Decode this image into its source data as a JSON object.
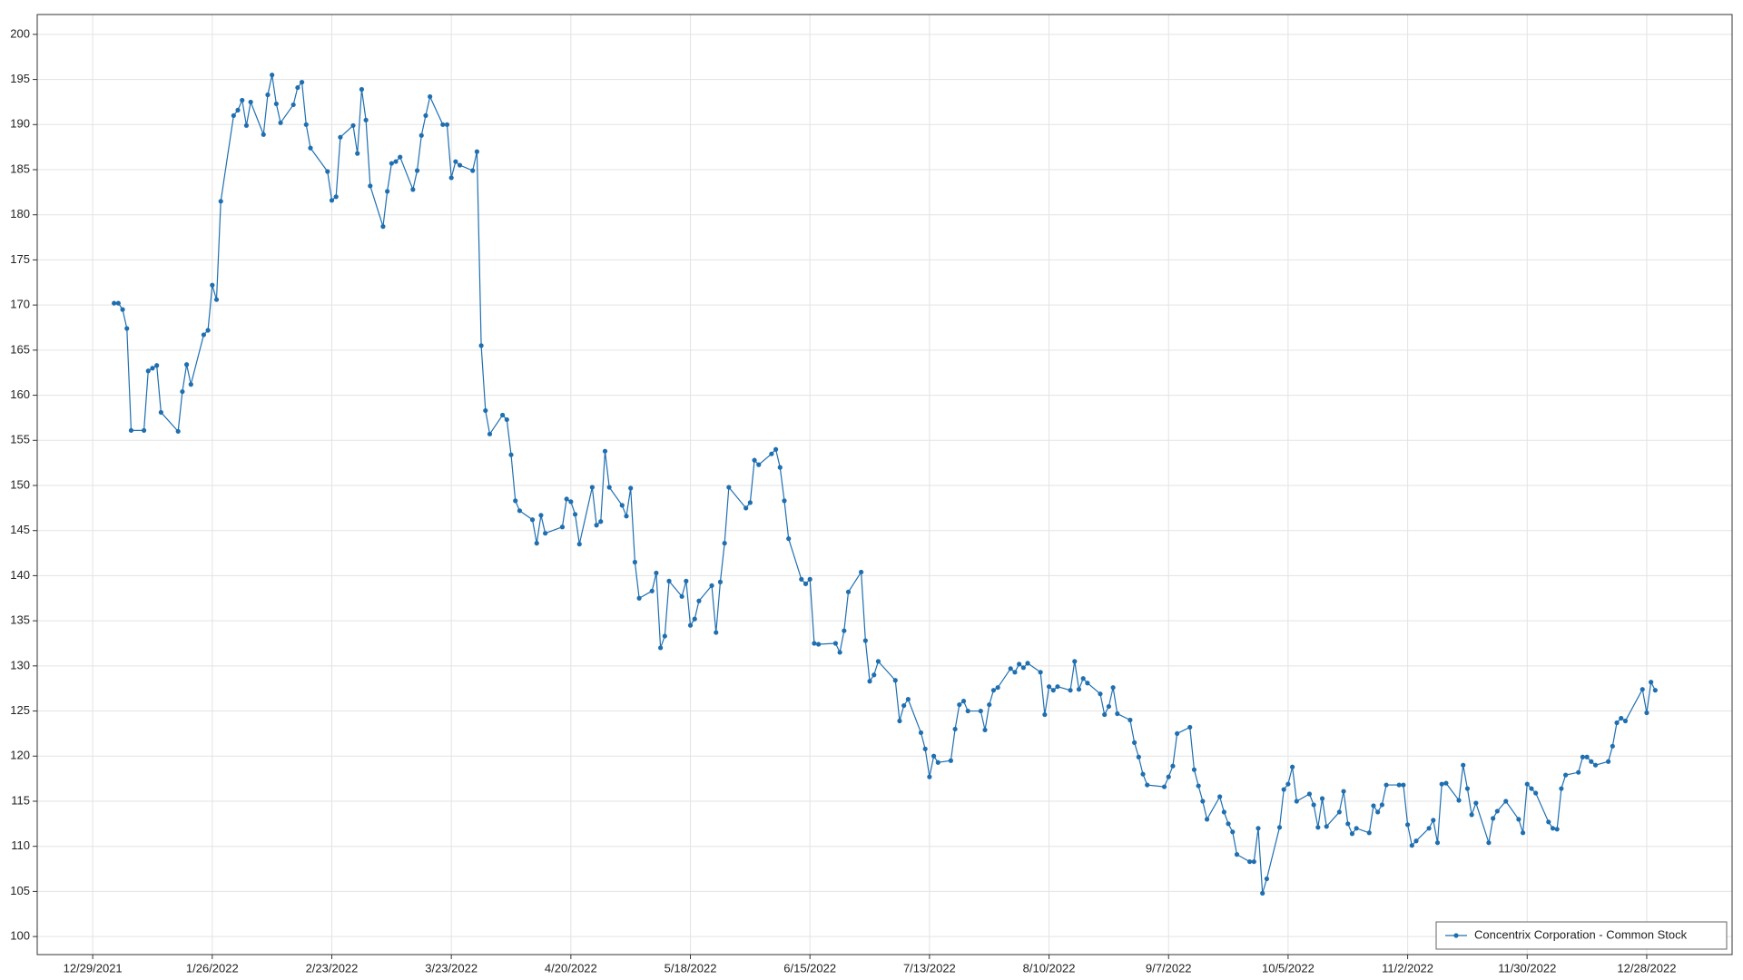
{
  "chart_data": {
    "type": "line",
    "x": [
      "1/3/2022",
      "1/4/2022",
      "1/5/2022",
      "1/6/2022",
      "1/7/2022",
      "1/10/2022",
      "1/11/2022",
      "1/12/2022",
      "1/13/2022",
      "1/14/2022",
      "1/18/2022",
      "1/19/2022",
      "1/20/2022",
      "1/21/2022",
      "1/24/2022",
      "1/25/2022",
      "1/26/2022",
      "1/27/2022",
      "1/28/2022",
      "1/31/2022",
      "2/1/2022",
      "2/2/2022",
      "2/3/2022",
      "2/4/2022",
      "2/7/2022",
      "2/8/2022",
      "2/9/2022",
      "2/10/2022",
      "2/11/2022",
      "2/14/2022",
      "2/15/2022",
      "2/16/2022",
      "2/17/2022",
      "2/18/2022",
      "2/22/2022",
      "2/23/2022",
      "2/24/2022",
      "2/25/2022",
      "2/28/2022",
      "3/1/2022",
      "3/2/2022",
      "3/3/2022",
      "3/4/2022",
      "3/7/2022",
      "3/8/2022",
      "3/9/2022",
      "3/10/2022",
      "3/11/2022",
      "3/14/2022",
      "3/15/2022",
      "3/16/2022",
      "3/17/2022",
      "3/18/2022",
      "3/21/2022",
      "3/22/2022",
      "3/23/2022",
      "3/24/2022",
      "3/25/2022",
      "3/28/2022",
      "3/29/2022",
      "3/30/2022",
      "3/31/2022",
      "4/1/2022",
      "4/4/2022",
      "4/5/2022",
      "4/6/2022",
      "4/7/2022",
      "4/8/2022",
      "4/11/2022",
      "4/12/2022",
      "4/13/2022",
      "4/14/2022",
      "4/18/2022",
      "4/19/2022",
      "4/20/2022",
      "4/21/2022",
      "4/22/2022",
      "4/25/2022",
      "4/26/2022",
      "4/27/2022",
      "4/28/2022",
      "4/29/2022",
      "5/2/2022",
      "5/3/2022",
      "5/4/2022",
      "5/5/2022",
      "5/6/2022",
      "5/9/2022",
      "5/10/2022",
      "5/11/2022",
      "5/12/2022",
      "5/13/2022",
      "5/16/2022",
      "5/17/2022",
      "5/18/2022",
      "5/19/2022",
      "5/20/2022",
      "5/23/2022",
      "5/24/2022",
      "5/25/2022",
      "5/26/2022",
      "5/27/2022",
      "5/31/2022",
      "6/1/2022",
      "6/2/2022",
      "6/3/2022",
      "6/6/2022",
      "6/7/2022",
      "6/8/2022",
      "6/9/2022",
      "6/10/2022",
      "6/13/2022",
      "6/14/2022",
      "6/15/2022",
      "6/16/2022",
      "6/17/2022",
      "6/21/2022",
      "6/22/2022",
      "6/23/2022",
      "6/24/2022",
      "6/27/2022",
      "6/28/2022",
      "6/29/2022",
      "6/30/2022",
      "7/1/2022",
      "7/5/2022",
      "7/6/2022",
      "7/7/2022",
      "7/8/2022",
      "7/11/2022",
      "7/12/2022",
      "7/13/2022",
      "7/14/2022",
      "7/15/2022",
      "7/18/2022",
      "7/19/2022",
      "7/20/2022",
      "7/21/2022",
      "7/22/2022",
      "7/25/2022",
      "7/26/2022",
      "7/27/2022",
      "7/28/2022",
      "7/29/2022",
      "8/1/2022",
      "8/2/2022",
      "8/3/2022",
      "8/4/2022",
      "8/5/2022",
      "8/8/2022",
      "8/9/2022",
      "8/10/2022",
      "8/11/2022",
      "8/12/2022",
      "8/15/2022",
      "8/16/2022",
      "8/17/2022",
      "8/18/2022",
      "8/19/2022",
      "8/22/2022",
      "8/23/2022",
      "8/24/2022",
      "8/25/2022",
      "8/26/2022",
      "8/29/2022",
      "8/30/2022",
      "8/31/2022",
      "9/1/2022",
      "9/2/2022",
      "9/6/2022",
      "9/7/2022",
      "9/8/2022",
      "9/9/2022",
      "9/12/2022",
      "9/13/2022",
      "9/14/2022",
      "9/15/2022",
      "9/16/2022",
      "9/19/2022",
      "9/20/2022",
      "9/21/2022",
      "9/22/2022",
      "9/23/2022",
      "9/26/2022",
      "9/27/2022",
      "9/28/2022",
      "9/29/2022",
      "9/30/2022",
      "10/3/2022",
      "10/4/2022",
      "10/5/2022",
      "10/6/2022",
      "10/7/2022",
      "10/10/2022",
      "10/11/2022",
      "10/12/2022",
      "10/13/2022",
      "10/14/2022",
      "10/17/2022",
      "10/18/2022",
      "10/19/2022",
      "10/20/2022",
      "10/21/2022",
      "10/24/2022",
      "10/25/2022",
      "10/26/2022",
      "10/27/2022",
      "10/28/2022",
      "10/31/2022",
      "11/1/2022",
      "11/2/2022",
      "11/3/2022",
      "11/4/2022",
      "11/7/2022",
      "11/8/2022",
      "11/9/2022",
      "11/10/2022",
      "11/11/2022",
      "11/14/2022",
      "11/15/2022",
      "11/16/2022",
      "11/17/2022",
      "11/18/2022",
      "11/21/2022",
      "11/22/2022",
      "11/23/2022",
      "11/25/2022",
      "11/28/2022",
      "11/29/2022",
      "11/30/2022",
      "12/1/2022",
      "12/2/2022",
      "12/5/2022",
      "12/6/2022",
      "12/7/2022",
      "12/8/2022",
      "12/9/2022",
      "12/12/2022",
      "12/13/2022",
      "12/14/2022",
      "12/15/2022",
      "12/16/2022",
      "12/19/2022",
      "12/20/2022",
      "12/21/2022",
      "12/22/2022",
      "12/23/2022",
      "12/27/2022",
      "12/28/2022",
      "12/29/2022",
      "12/30/2022"
    ],
    "series": [
      {
        "name": "Concentrix Corporation - Common Stock",
        "color": "#1f6fb0",
        "values": [
          170.2,
          170.2,
          169.5,
          167.4,
          156.1,
          156.1,
          162.7,
          163.0,
          163.3,
          158.1,
          156.0,
          160.4,
          163.4,
          161.2,
          166.7,
          167.2,
          172.2,
          170.6,
          181.5,
          191.0,
          191.6,
          192.7,
          189.9,
          192.5,
          188.9,
          193.3,
          195.5,
          192.3,
          190.2,
          192.2,
          194.1,
          194.7,
          190.0,
          187.4,
          184.8,
          181.6,
          182.0,
          188.6,
          189.9,
          186.8,
          193.9,
          190.5,
          183.2,
          178.7,
          182.6,
          185.7,
          185.9,
          186.4,
          182.8,
          184.9,
          188.8,
          191.0,
          193.1,
          190.0,
          190.0,
          184.1,
          185.9,
          185.5,
          184.9,
          187.0,
          165.5,
          158.3,
          155.7,
          157.8,
          157.3,
          153.4,
          148.3,
          147.2,
          146.2,
          143.6,
          146.7,
          144.7,
          145.4,
          148.5,
          148.2,
          146.8,
          143.5,
          149.8,
          145.6,
          146.0,
          153.8,
          149.8,
          147.8,
          146.6,
          149.7,
          141.5,
          137.5,
          138.3,
          140.3,
          132.0,
          133.3,
          139.4,
          137.7,
          139.4,
          134.5,
          135.2,
          137.2,
          138.9,
          133.7,
          139.3,
          143.6,
          149.8,
          147.5,
          148.1,
          152.8,
          152.3,
          153.5,
          154.0,
          152.0,
          148.3,
          144.1,
          139.6,
          139.1,
          139.6,
          132.5,
          132.4,
          132.5,
          131.5,
          133.9,
          138.2,
          140.4,
          132.8,
          128.3,
          129.0,
          130.5,
          128.4,
          123.9,
          125.6,
          126.3,
          122.6,
          120.8,
          117.7,
          120.0,
          119.3,
          119.5,
          123.0,
          125.7,
          126.1,
          125.0,
          125.0,
          122.9,
          125.7,
          127.3,
          127.6,
          129.7,
          129.3,
          130.2,
          129.8,
          130.3,
          129.3,
          124.6,
          127.7,
          127.3,
          127.7,
          127.3,
          130.5,
          127.4,
          128.6,
          128.1,
          126.9,
          124.6,
          125.5,
          127.6,
          124.7,
          124.0,
          121.5,
          119.9,
          118.0,
          116.8,
          116.6,
          117.7,
          118.9,
          122.5,
          123.2,
          118.5,
          116.7,
          115.0,
          113.0,
          115.5,
          113.8,
          112.5,
          111.6,
          109.1,
          108.3,
          108.3,
          112.0,
          104.8,
          106.4,
          112.1,
          116.3,
          116.9,
          118.8,
          115.0,
          115.8,
          114.6,
          112.1,
          115.3,
          112.2,
          113.8,
          116.1,
          112.5,
          111.4,
          112.0,
          111.5,
          114.5,
          113.8,
          114.6,
          116.8,
          116.8,
          116.8,
          112.4,
          110.1,
          110.6,
          112.0,
          112.9,
          110.4,
          116.9,
          117.0,
          115.1,
          119.0,
          116.4,
          113.5,
          114.8,
          110.4,
          113.1,
          113.9,
          115.0,
          113.0,
          111.5,
          116.9,
          116.4,
          115.9,
          112.7,
          112.0,
          111.9,
          116.4,
          117.9,
          118.2,
          119.9,
          119.9,
          119.4,
          119.0,
          119.4,
          121.1,
          123.7,
          124.2,
          123.9,
          127.4,
          124.8,
          128.2,
          127.3
        ]
      }
    ],
    "xlim": [
      "12/16/2021",
      "1/17/2023"
    ],
    "xticks": [
      "12/29/2021",
      "1/26/2022",
      "2/23/2022",
      "3/23/2022",
      "4/20/2022",
      "5/18/2022",
      "6/15/2022",
      "7/13/2022",
      "8/10/2022",
      "9/7/2022",
      "10/5/2022",
      "11/2/2022",
      "11/30/2022",
      "12/28/2022"
    ],
    "ylim": [
      98,
      202.2
    ],
    "yticks": [
      100,
      105,
      110,
      115,
      120,
      125,
      130,
      135,
      140,
      145,
      150,
      155,
      160,
      165,
      170,
      175,
      180,
      185,
      190,
      195,
      200
    ],
    "grid": true,
    "markers": true,
    "legend": "lower right"
  }
}
